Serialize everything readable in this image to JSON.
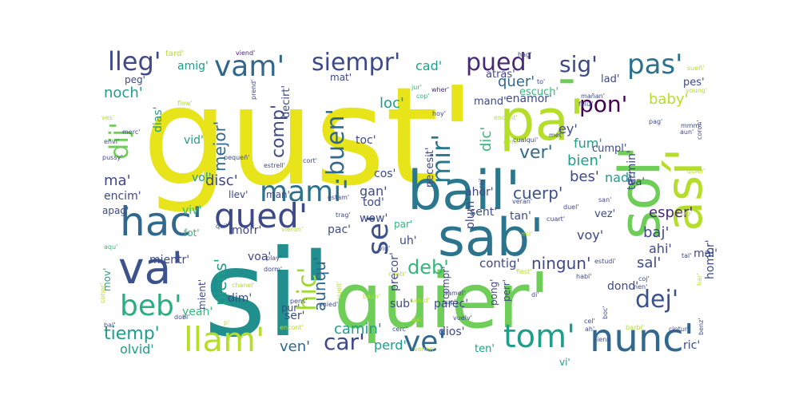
{
  "word_cloud": {
    "palette": [
      "#e7e419",
      "#b5de2b",
      "#6ece58",
      "#35b779",
      "#1f9e89",
      "#26828e",
      "#31688e",
      "#3e4989",
      "#482878",
      "#440154"
    ],
    "words": [
      {
        "text": "gust'",
        "color": "#e7e419"
      },
      {
        "text": "si'",
        "color": "#218f8d"
      },
      {
        "text": "quier'",
        "color": "#6ece58"
      },
      {
        "text": "sab'",
        "color": "#2c738e"
      },
      {
        "text": "bail'",
        "color": "#2a788e"
      },
      {
        "text": "va'",
        "color": "#3b528b"
      },
      {
        "text": "pa'",
        "color": "#b5de2b"
      },
      {
        "text": "así'",
        "color": "#b5de2b"
      },
      {
        "text": "sol'",
        "color": "#6ece58"
      },
      {
        "text": "'",
        "color": "#6ece58"
      },
      {
        "text": "hac'",
        "color": "#31688e"
      },
      {
        "text": "qued'",
        "color": "#3e4989"
      },
      {
        "text": "mami'",
        "color": "#2c728e"
      },
      {
        "text": "nunc'",
        "color": "#31688e"
      },
      {
        "text": "tom'",
        "color": "#1f9e89"
      },
      {
        "text": "llam'",
        "color": "#b5de2b"
      },
      {
        "text": "beb'",
        "color": "#29af7f"
      },
      {
        "text": "ve'",
        "color": "#31688e"
      },
      {
        "text": "vam'",
        "color": "#31688e"
      },
      {
        "text": "lleg'",
        "color": "#3e4989"
      },
      {
        "text": "siempr'",
        "color": "#3e4989"
      },
      {
        "text": "pued'",
        "color": "#482878"
      },
      {
        "text": "pas'",
        "color": "#2c728e"
      },
      {
        "text": "sig'",
        "color": "#3e4989"
      },
      {
        "text": "pon'",
        "color": "#440154"
      },
      {
        "text": "se'",
        "color": "#3b528b"
      },
      {
        "text": "mir'",
        "color": "#2a788e"
      },
      {
        "text": "dij'",
        "color": "#6ece58"
      },
      {
        "text": "hic'",
        "color": "#a0da39"
      },
      {
        "text": "buen'",
        "color": "#31688e"
      },
      {
        "text": "dej'",
        "color": "#3b528b"
      },
      {
        "text": "car'",
        "color": "#3e4989"
      },
      {
        "text": "tiemp'",
        "color": "#1f9e89"
      },
      {
        "text": "deb'",
        "color": "#35b779"
      },
      {
        "text": "ver'",
        "color": "#31688e"
      },
      {
        "text": "cuerp'",
        "color": "#3b528b"
      },
      {
        "text": "ningun'",
        "color": "#3e4989"
      },
      {
        "text": "comp'",
        "color": "#3e4989"
      },
      {
        "text": "baby'",
        "color": "#b5de2b"
      },
      {
        "text": "quer'",
        "color": "#31688e"
      },
      {
        "text": "aunqu'",
        "color": "#31688e"
      },
      {
        "text": "piens'",
        "color": "#1f9e89"
      },
      {
        "text": "mejor'",
        "color": "#31688e"
      },
      {
        "text": "esper'",
        "color": "#482878"
      },
      {
        "text": "camin'",
        "color": "#1f9e89"
      },
      {
        "text": "ven'",
        "color": "#31688e"
      },
      {
        "text": "perd'",
        "color": "#1f9e89"
      },
      {
        "text": "noch'",
        "color": "#1f9e89"
      },
      {
        "text": "loc'",
        "color": "#1f9e89"
      },
      {
        "text": "dic'",
        "color": "#35b779"
      },
      {
        "text": "bien'",
        "color": "#1f9e89"
      },
      {
        "text": "cad'",
        "color": "#1f9e89"
      },
      {
        "text": "amig'",
        "color": "#1f9e89"
      },
      {
        "text": "fum'",
        "color": "#1f9e89"
      },
      {
        "text": "ey'",
        "color": "#3e4989"
      },
      {
        "text": "bes'",
        "color": "#3e4989"
      },
      {
        "text": "nadi'",
        "color": "#1f9e89"
      },
      {
        "text": "baj'",
        "color": "#3e4989"
      },
      {
        "text": "voy'",
        "color": "#3e4989"
      },
      {
        "text": "sal'",
        "color": "#3e4989"
      },
      {
        "text": "contig'",
        "color": "#3e4989"
      },
      {
        "text": "disc'",
        "color": "#3e4989"
      },
      {
        "text": "ma'",
        "color": "#3e4989"
      },
      {
        "text": "vid'",
        "color": "#1f9e89"
      },
      {
        "text": "dias'",
        "color": "#1f9e89"
      },
      {
        "text": "vol'",
        "color": "#1f9e89"
      },
      {
        "text": "gan'",
        "color": "#3e4989"
      },
      {
        "text": "cos'",
        "color": "#3e4989"
      },
      {
        "text": "tod'",
        "color": "#3e4989"
      },
      {
        "text": "wow'",
        "color": "#3e4989"
      },
      {
        "text": "pac'",
        "color": "#3e4989"
      },
      {
        "text": "uh'",
        "color": "#3e4989"
      },
      {
        "text": "ahi'",
        "color": "#3e4989"
      },
      {
        "text": "dond'",
        "color": "#3e4989"
      },
      {
        "text": "dios'",
        "color": "#3e4989"
      },
      {
        "text": "ser'",
        "color": "#3e4989"
      },
      {
        "text": "dim'",
        "color": "#3e4989"
      },
      {
        "text": "yeah'",
        "color": "#35b779"
      },
      {
        "text": "morr'",
        "color": "#3e4989"
      },
      {
        "text": "voa'",
        "color": "#3e4989"
      },
      {
        "text": "necesit'",
        "color": "#3e4989"
      },
      {
        "text": "toc'",
        "color": "#3e4989"
      },
      {
        "text": "ahor'",
        "color": "#3e4989"
      },
      {
        "text": "tan'",
        "color": "#3e4989"
      },
      {
        "text": "sent'",
        "color": "#3e4989"
      },
      {
        "text": "plum'",
        "color": "#3e4989"
      },
      {
        "text": "precor'",
        "color": "#3e4989"
      },
      {
        "text": "parec'",
        "color": "#3e4989"
      },
      {
        "text": "sub'",
        "color": "#3e4989"
      },
      {
        "text": "pur'",
        "color": "#3e4989"
      },
      {
        "text": "mientr'",
        "color": "#3e4989"
      },
      {
        "text": "mient'",
        "color": "#3e4989"
      },
      {
        "text": "encim'",
        "color": "#3e4989"
      },
      {
        "text": "apag'",
        "color": "#3e4989"
      },
      {
        "text": "llev'",
        "color": "#3e4989"
      },
      {
        "text": "man'",
        "color": "#3e4989"
      },
      {
        "text": "viv'",
        "color": "#35b779"
      },
      {
        "text": "fot'",
        "color": "#35b779"
      },
      {
        "text": "olvid'",
        "color": "#1f9e89"
      },
      {
        "text": "mov'",
        "color": "#1f9e89"
      },
      {
        "text": "hombr'",
        "color": "#3e4989"
      },
      {
        "text": "mal'",
        "color": "#3e4989"
      },
      {
        "text": "vez'",
        "color": "#3e4989"
      },
      {
        "text": "termin'",
        "color": "#3e4989"
      },
      {
        "text": "cumpl'",
        "color": "#3e4989"
      },
      {
        "text": "tra'",
        "color": "#3e4989"
      },
      {
        "text": "mand'",
        "color": "#3e4989"
      },
      {
        "text": "enamor'",
        "color": "#3e4989"
      },
      {
        "text": "escuch'",
        "color": "#35b779"
      },
      {
        "text": "atras'",
        "color": "#3e4989"
      },
      {
        "text": "lad'",
        "color": "#3e4989"
      },
      {
        "text": "pes'",
        "color": "#3e4989"
      },
      {
        "text": "mat'",
        "color": "#3e4989"
      },
      {
        "text": "decirt'",
        "color": "#3e4989"
      },
      {
        "text": "peg'",
        "color": "#3e4989"
      },
      {
        "text": "ric'",
        "color": "#3e4989"
      },
      {
        "text": "ten'",
        "color": "#1f9e89"
      },
      {
        "text": "vi'",
        "color": "#1f9e89"
      },
      {
        "text": "compr'",
        "color": "#3e4989"
      },
      {
        "text": "pong'",
        "color": "#3e4989"
      },
      {
        "text": "perr'",
        "color": "#3e4989"
      },
      {
        "text": "par'",
        "color": "#35b779"
      },
      {
        "text": "tard'",
        "color": "#b5de2b"
      },
      {
        "text": "viend'",
        "color": "#482878"
      },
      {
        "text": "hag'",
        "color": "#3e4989"
      },
      {
        "text": "sueñ'",
        "color": "#b5de2b"
      },
      {
        "text": "flow'",
        "color": "#b5de2b"
      },
      {
        "text": "ves'",
        "color": "#b5de2b"
      },
      {
        "text": "envi'",
        "color": "#3e4989"
      },
      {
        "text": "merc'",
        "color": "#3e4989"
      },
      {
        "text": "prend'",
        "color": "#3e4989"
      },
      {
        "text": "jur'",
        "color": "#35b779"
      },
      {
        "text": "cop'",
        "color": "#35b779"
      },
      {
        "text": "wher'",
        "color": "#482878"
      },
      {
        "text": "hoy'",
        "color": "#3e4989"
      },
      {
        "text": "mañan'",
        "color": "#3e4989"
      },
      {
        "text": "feliz'",
        "color": "#3e4989"
      },
      {
        "text": "encant'",
        "color": "#b5de2b"
      },
      {
        "text": "to'",
        "color": "#3e4989"
      },
      {
        "text": "young'",
        "color": "#b5de2b"
      },
      {
        "text": "coron'",
        "color": "#3e4989"
      },
      {
        "text": "mmm'",
        "color": "#3e4989"
      },
      {
        "text": "pag'",
        "color": "#3e4989"
      },
      {
        "text": "aun'",
        "color": "#3e4989"
      },
      {
        "text": "met'",
        "color": "#3e4989"
      },
      {
        "text": "amo'",
        "color": "#b5de2b"
      },
      {
        "text": "cualqui'",
        "color": "#3e4989"
      },
      {
        "text": "pussy'",
        "color": "#3e4989"
      },
      {
        "text": "pequeñ'",
        "color": "#3e4989"
      },
      {
        "text": "estrell'",
        "color": "#3e4989"
      },
      {
        "text": "cort'",
        "color": "#3e4989"
      },
      {
        "text": "roj'",
        "color": "#3e4989"
      },
      {
        "text": "veran'",
        "color": "#3e4989"
      },
      {
        "text": "quier'",
        "color": "#b5de2b"
      },
      {
        "text": "estam'",
        "color": "#3e4989"
      },
      {
        "text": "duel'",
        "color": "#3e4989"
      },
      {
        "text": "san'",
        "color": "#3e4989"
      },
      {
        "text": "trag'",
        "color": "#3e4989"
      },
      {
        "text": "cuart'",
        "color": "#3e4989"
      },
      {
        "text": "cre'",
        "color": "#b5de2b"
      },
      {
        "text": "aqu'",
        "color": "#35b779"
      },
      {
        "text": "vieron'",
        "color": "#b5de2b"
      },
      {
        "text": "qui'",
        "color": "#3e4989"
      },
      {
        "text": "mil'",
        "color": "#b5de2b"
      },
      {
        "text": "play'",
        "color": "#3e4989"
      },
      {
        "text": "vin'",
        "color": "#3e4989"
      },
      {
        "text": "estudi'",
        "color": "#3e4989"
      },
      {
        "text": "tal'",
        "color": "#3e4989"
      },
      {
        "text": "dorm'",
        "color": "#3e4989"
      },
      {
        "text": "fiest'",
        "color": "#b5de2b"
      },
      {
        "text": "habl'",
        "color": "#3e4989"
      },
      {
        "text": "coj'",
        "color": "#3e4989"
      },
      {
        "text": "har'",
        "color": "#b5de2b"
      },
      {
        "text": "chanel'",
        "color": "#b5de2b"
      },
      {
        "text": "baan'",
        "color": "#b5de2b"
      },
      {
        "text": "cuatr'",
        "color": "#b5de2b"
      },
      {
        "text": "vuelt'",
        "color": "#b5de2b"
      },
      {
        "text": "mied'",
        "color": "#3e4989"
      },
      {
        "text": "pens'",
        "color": "#3e4989"
      },
      {
        "text": "damel'",
        "color": "#3e4989"
      },
      {
        "text": "di'",
        "color": "#3e4989"
      },
      {
        "text": "nen'",
        "color": "#3e4989"
      },
      {
        "text": "conoc'",
        "color": "#b5de2b"
      },
      {
        "text": "salud'",
        "color": "#b5de2b"
      },
      {
        "text": "sup'",
        "color": "#3e4989"
      },
      {
        "text": "bal'",
        "color": "#3e4989"
      },
      {
        "text": "dobl'",
        "color": "#3e4989"
      },
      {
        "text": "p'",
        "color": "#b5de2b"
      },
      {
        "text": "encont'",
        "color": "#b5de2b"
      },
      {
        "text": "dar'",
        "color": "#b5de2b"
      },
      {
        "text": "vuelv'",
        "color": "#3e4989"
      },
      {
        "text": "cerc'",
        "color": "#3e4989"
      },
      {
        "text": "venen'",
        "color": "#b5de2b"
      },
      {
        "text": "cel'",
        "color": "#3e4989"
      },
      {
        "text": "ah'",
        "color": "#3e4989"
      },
      {
        "text": "sient'",
        "color": "#3e4989"
      },
      {
        "text": "boc'",
        "color": "#3e4989"
      },
      {
        "text": "barbi'",
        "color": "#b5de2b"
      },
      {
        "text": "cintur'",
        "color": "#3e4989"
      },
      {
        "text": "benz'",
        "color": "#3e4989"
      },
      {
        "text": "recuerd'",
        "color": "#b5de2b"
      }
    ]
  }
}
